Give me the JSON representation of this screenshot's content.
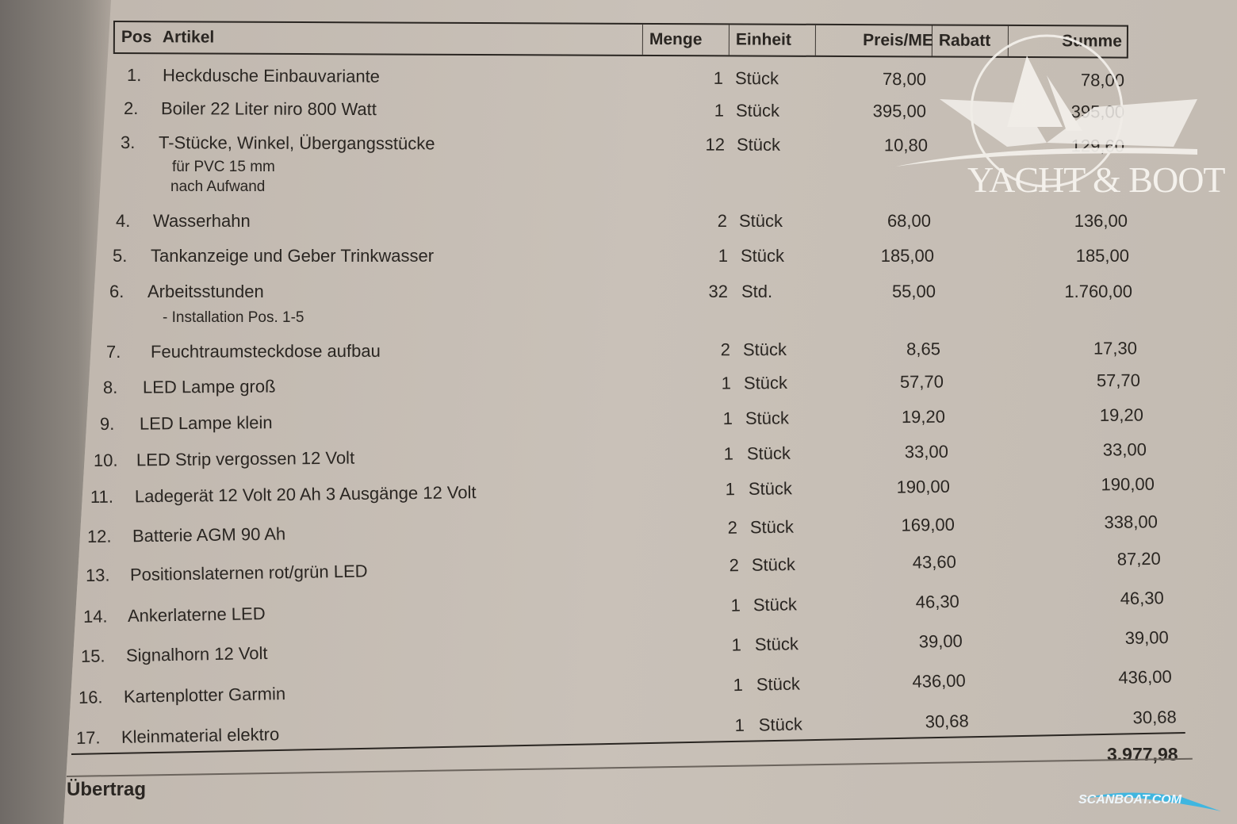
{
  "header": {
    "pos": "Pos",
    "artikel": "Artikel",
    "menge": "Menge",
    "einheit": "Einheit",
    "preis": "Preis/ME",
    "rabatt": "Rabatt",
    "summe": "Summe"
  },
  "items": [
    {
      "pos": "1.",
      "artikel": "Heckdusche Einbauvariante",
      "menge": "1",
      "einheit": "Stück",
      "preis": "78,00",
      "summe": "78,00"
    },
    {
      "pos": "2.",
      "artikel": "Boiler 22 Liter niro 800 Watt",
      "menge": "1",
      "einheit": "Stück",
      "preis": "395,00",
      "summe": "395,00"
    },
    {
      "pos": "3.",
      "artikel": "T-Stücke, Winkel, Übergangsstücke",
      "menge": "12",
      "einheit": "Stück",
      "preis": "10,80",
      "summe": "129,60",
      "sub": [
        "für PVC 15 mm",
        "nach Aufwand"
      ]
    },
    {
      "pos": "4.",
      "artikel": "Wasserhahn",
      "menge": "2",
      "einheit": "Stück",
      "preis": "68,00",
      "summe": "136,00"
    },
    {
      "pos": "5.",
      "artikel": "Tankanzeige und Geber Trinkwasser",
      "menge": "1",
      "einheit": "Stück",
      "preis": "185,00",
      "summe": "185,00"
    },
    {
      "pos": "6.",
      "artikel": "Arbeitsstunden",
      "menge": "32",
      "einheit": "Std.",
      "preis": "55,00",
      "summe": "1.760,00",
      "sub": [
        "- Installation Pos. 1-5"
      ]
    },
    {
      "pos": "7.",
      "artikel": "Feuchtraumsteckdose aufbau",
      "menge": "2",
      "einheit": "Stück",
      "preis": "8,65",
      "summe": "17,30"
    },
    {
      "pos": "8.",
      "artikel": "LED Lampe groß",
      "menge": "1",
      "einheit": "Stück",
      "preis": "57,70",
      "summe": "57,70"
    },
    {
      "pos": "9.",
      "artikel": "LED Lampe klein",
      "menge": "1",
      "einheit": "Stück",
      "preis": "19,20",
      "summe": "19,20"
    },
    {
      "pos": "10.",
      "artikel": "LED Strip vergossen 12 Volt",
      "menge": "1",
      "einheit": "Stück",
      "preis": "33,00",
      "summe": "33,00"
    },
    {
      "pos": "11.",
      "artikel": "Ladegerät 12 Volt 20 Ah 3 Ausgänge 12 Volt",
      "menge": "1",
      "einheit": "Stück",
      "preis": "190,00",
      "summe": "190,00"
    },
    {
      "pos": "12.",
      "artikel": "Batterie AGM 90 Ah",
      "menge": "2",
      "einheit": "Stück",
      "preis": "169,00",
      "summe": "338,00"
    },
    {
      "pos": "13.",
      "artikel": "Positionslaternen rot/grün LED",
      "menge": "2",
      "einheit": "Stück",
      "preis": "43,60",
      "summe": "87,20"
    },
    {
      "pos": "14.",
      "artikel": "Ankerlaterne LED",
      "menge": "1",
      "einheit": "Stück",
      "preis": "46,30",
      "summe": "46,30"
    },
    {
      "pos": "15.",
      "artikel": "Signalhorn 12 Volt",
      "menge": "1",
      "einheit": "Stück",
      "preis": "39,00",
      "summe": "39,00"
    },
    {
      "pos": "16.",
      "artikel": "Kartenplotter Garmin",
      "menge": "1",
      "einheit": "Stück",
      "preis": "436,00",
      "summe": "436,00"
    },
    {
      "pos": "17.",
      "artikel": "Kleinmaterial elektro",
      "menge": "1",
      "einheit": "Stück",
      "preis": "30,68",
      "summe": "30,68"
    }
  ],
  "total": "3.977,98",
  "footer": {
    "uebertrag": "Übertrag"
  },
  "watermarks": {
    "yacht_boot": "YACHT & BOOT",
    "scanboat": "SCANBOAT.COM"
  },
  "colors": {
    "paper": "#c5bdb4",
    "ink": "#2a2622",
    "watermark": "#f4f1ec",
    "scanboat": "#3fb6e0"
  }
}
